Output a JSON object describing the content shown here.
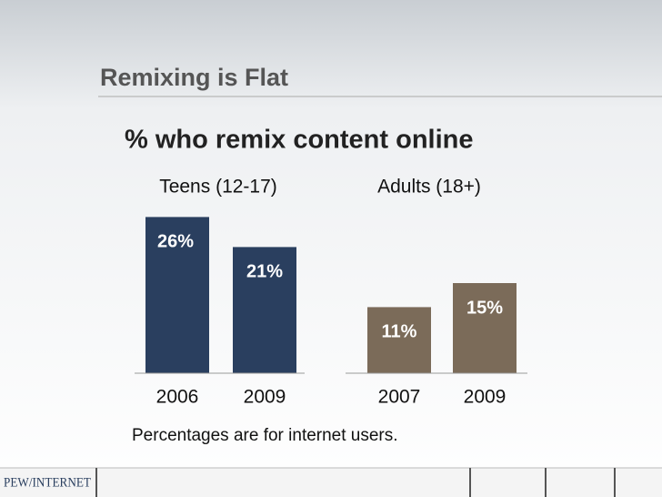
{
  "slide": {
    "title": "Remixing is Flat",
    "subtitle": "% who remix content online",
    "note": "Percentages are for internet users.",
    "logo": "PEW/INTERNET"
  },
  "chart_data": [
    {
      "type": "bar",
      "title": "Teens (12-17)",
      "categories": [
        "2006",
        "2009"
      ],
      "values": [
        26,
        21
      ],
      "value_labels": [
        "26%",
        "21%"
      ],
      "color": "#2a3f5f"
    },
    {
      "type": "bar",
      "title": "Adults (18+)",
      "categories": [
        "2007",
        "2009"
      ],
      "values": [
        11,
        15
      ],
      "value_labels": [
        "11%",
        "15%"
      ],
      "color": "#7b6b59"
    }
  ]
}
